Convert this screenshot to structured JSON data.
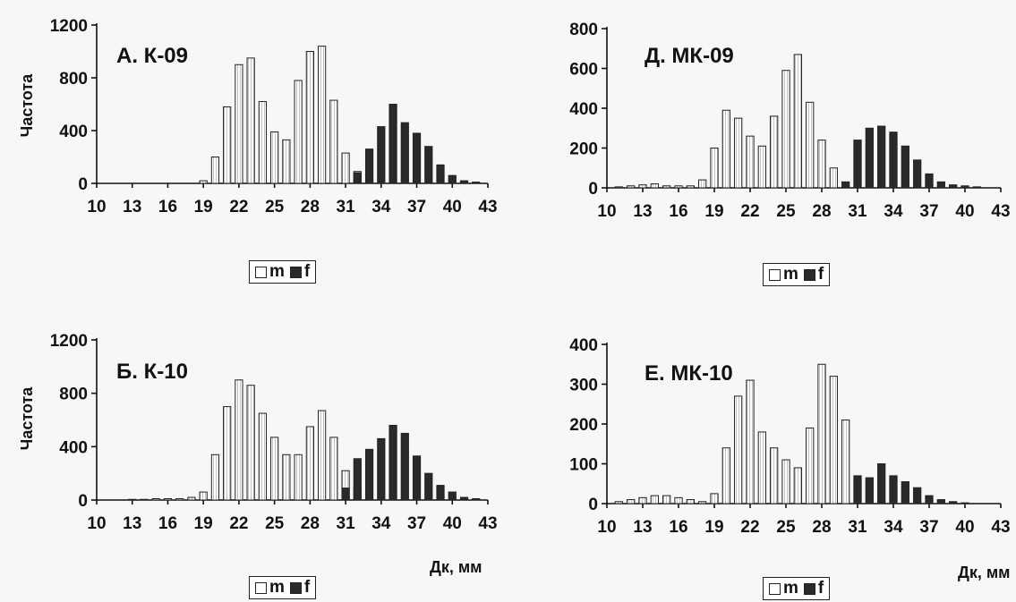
{
  "figure": {
    "xlabel": "Дк, мм",
    "ylabel": "Частота",
    "legend": {
      "m": "m",
      "f": "f"
    }
  },
  "chart_data": [
    {
      "type": "bar",
      "title": "А. К-09",
      "ylabel": "Частота",
      "xlabel": "",
      "x": [
        19,
        20,
        21,
        22,
        23,
        24,
        25,
        26,
        27,
        28,
        29,
        30,
        31,
        32,
        33,
        34,
        35,
        36,
        37,
        38,
        39,
        40,
        41,
        42
      ],
      "series": [
        {
          "name": "m",
          "values": [
            20,
            200,
            580,
            900,
            950,
            620,
            390,
            330,
            780,
            1000,
            1040,
            630,
            230,
            90,
            0,
            0,
            0,
            0,
            0,
            0,
            0,
            0,
            0,
            0
          ]
        },
        {
          "name": "f",
          "values": [
            0,
            0,
            0,
            0,
            0,
            0,
            0,
            0,
            0,
            0,
            0,
            0,
            0,
            80,
            260,
            430,
            600,
            460,
            380,
            280,
            140,
            60,
            20,
            10
          ]
        }
      ],
      "ylim": [
        0,
        1200
      ],
      "yticks": [
        0,
        400,
        800,
        1200
      ],
      "xticks": [
        10,
        13,
        16,
        19,
        22,
        25,
        28,
        31,
        34,
        37,
        40,
        43
      ],
      "legend": "bottom"
    },
    {
      "type": "bar",
      "title": "Д. МК-09",
      "ylabel": "",
      "xlabel": "",
      "x": [
        11,
        12,
        13,
        14,
        15,
        16,
        17,
        18,
        19,
        20,
        21,
        22,
        23,
        24,
        25,
        26,
        27,
        28,
        29,
        30,
        31,
        32,
        33,
        34,
        35,
        36,
        37,
        38,
        39,
        40,
        41
      ],
      "series": [
        {
          "name": "m",
          "values": [
            5,
            10,
            15,
            20,
            10,
            10,
            10,
            40,
            200,
            390,
            350,
            260,
            210,
            360,
            590,
            670,
            430,
            240,
            100,
            0,
            0,
            0,
            0,
            0,
            0,
            0,
            0,
            0,
            0,
            0,
            0
          ]
        },
        {
          "name": "f",
          "values": [
            0,
            0,
            0,
            0,
            0,
            0,
            0,
            0,
            0,
            0,
            0,
            0,
            0,
            0,
            0,
            0,
            0,
            0,
            0,
            30,
            240,
            300,
            310,
            280,
            210,
            140,
            70,
            30,
            15,
            10,
            5
          ]
        }
      ],
      "ylim": [
        0,
        800
      ],
      "yticks": [
        0,
        200,
        400,
        600,
        800
      ],
      "xticks": [
        10,
        13,
        16,
        19,
        22,
        25,
        28,
        31,
        34,
        37,
        40,
        43
      ],
      "legend": "bottom"
    },
    {
      "type": "bar",
      "title": "Б. К-10",
      "ylabel": "Частота",
      "xlabel": "Дк, мм",
      "x": [
        11,
        12,
        13,
        14,
        15,
        16,
        17,
        18,
        19,
        20,
        21,
        22,
        23,
        24,
        25,
        26,
        27,
        28,
        29,
        30,
        31,
        32,
        33,
        34,
        35,
        36,
        37,
        38,
        39,
        40,
        41,
        42
      ],
      "series": [
        {
          "name": "m",
          "values": [
            0,
            0,
            5,
            5,
            10,
            10,
            10,
            20,
            60,
            340,
            700,
            900,
            860,
            650,
            470,
            340,
            340,
            550,
            670,
            470,
            220,
            90,
            0,
            0,
            0,
            0,
            0,
            0,
            0,
            0,
            0,
            0
          ]
        },
        {
          "name": "f",
          "values": [
            0,
            0,
            0,
            0,
            0,
            0,
            0,
            0,
            0,
            0,
            0,
            0,
            0,
            0,
            0,
            0,
            0,
            0,
            0,
            0,
            90,
            310,
            380,
            460,
            560,
            500,
            330,
            200,
            110,
            60,
            20,
            10
          ]
        }
      ],
      "ylim": [
        0,
        1200
      ],
      "yticks": [
        0,
        400,
        800,
        1200
      ],
      "xticks": [
        10,
        13,
        16,
        19,
        22,
        25,
        28,
        31,
        34,
        37,
        40,
        43
      ],
      "legend": "bottom"
    },
    {
      "type": "bar",
      "title": "Е. МК-10",
      "ylabel": "",
      "xlabel": "Дк, мм",
      "x": [
        11,
        12,
        13,
        14,
        15,
        16,
        17,
        18,
        19,
        20,
        21,
        22,
        23,
        24,
        25,
        26,
        27,
        28,
        29,
        30,
        31,
        32,
        33,
        34,
        35,
        36,
        37,
        38,
        39,
        40
      ],
      "series": [
        {
          "name": "m",
          "values": [
            5,
            10,
            15,
            20,
            20,
            15,
            10,
            5,
            25,
            140,
            270,
            310,
            180,
            140,
            110,
            90,
            190,
            350,
            320,
            210,
            0,
            0,
            0,
            0,
            0,
            0,
            0,
            0,
            0,
            0
          ]
        },
        {
          "name": "f",
          "values": [
            0,
            0,
            0,
            0,
            0,
            0,
            0,
            0,
            0,
            0,
            0,
            0,
            0,
            0,
            0,
            0,
            0,
            0,
            0,
            0,
            70,
            65,
            100,
            70,
            55,
            40,
            20,
            10,
            5,
            2
          ]
        }
      ],
      "ylim": [
        0,
        400
      ],
      "yticks": [
        0,
        100,
        200,
        300,
        400
      ],
      "xticks": [
        10,
        13,
        16,
        19,
        22,
        25,
        28,
        31,
        34,
        37,
        40,
        43
      ],
      "legend": "bottom"
    }
  ]
}
